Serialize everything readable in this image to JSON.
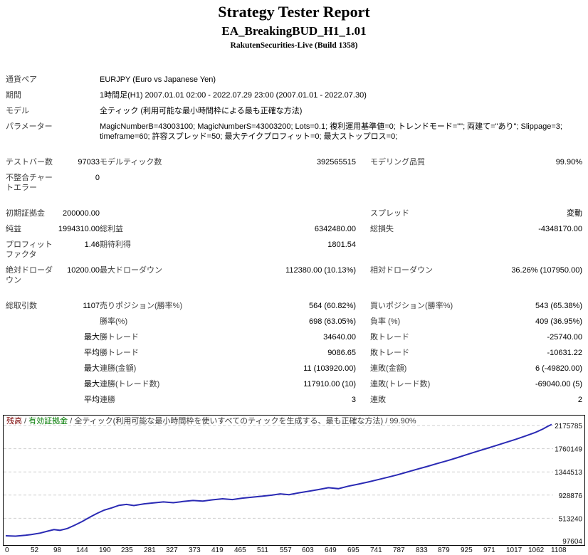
{
  "header": {
    "title": "Strategy Tester Report",
    "subtitle": "EA_BreakingBUD_H1_1.01",
    "build": "RakutenSecurities-Live (Build 1358)"
  },
  "table": {
    "rows": [
      {
        "type": "info",
        "label": "通貨ペア",
        "value": "EURJPY (Euro vs Japanese Yen)"
      },
      {
        "type": "info",
        "label": "期間",
        "value": "1時間足(H1) 2007.01.01 02:00 - 2022.07.29 23:00 (2007.01.01 - 2022.07.30)"
      },
      {
        "type": "info",
        "label": "モデル",
        "value": "全ティック (利用可能な最小時間枠による最も正確な方法)"
      },
      {
        "type": "info",
        "label": "パラメーター",
        "value": "MagicNumberB=43003100; MagicNumberS=43003200; Lots=0.1; 複利運用基準値=0; トレンドモード=\"\"; 両建て=\"あり\"; Slippage=3; timeframe=60; 許容スプレッド=50; 最大テイクプロフィット=0; 最大ストップロス=0;"
      },
      {
        "type": "spacer"
      },
      {
        "type": "stat",
        "c": [
          "テストバー数",
          "97033",
          "モデルティック数",
          "392565515",
          "モデリング品質",
          "99.90%"
        ]
      },
      {
        "type": "stat",
        "c": [
          "不整合チャートエラー",
          "0",
          "",
          "",
          "",
          ""
        ]
      },
      {
        "type": "spacer"
      },
      {
        "type": "stat",
        "c": [
          "初期証拠金",
          "200000.00",
          "",
          "",
          "スプレッド",
          "変動"
        ]
      },
      {
        "type": "stat",
        "c": [
          "純益",
          "1994310.00",
          "総利益",
          "6342480.00",
          "総損失",
          "-4348170.00"
        ]
      },
      {
        "type": "stat",
        "c": [
          "プロフィットファクタ",
          "1.46",
          "期待利得",
          "1801.54",
          "",
          ""
        ]
      },
      {
        "type": "stat",
        "c": [
          "絶対ドローダウン",
          "10200.00",
          "最大ドローダウン",
          "112380.00 (10.13%)",
          "相対ドローダウン",
          "36.26% (107950.00)"
        ]
      },
      {
        "type": "spacer"
      },
      {
        "type": "stat",
        "c": [
          "総取引数",
          "1107",
          "売りポジション(勝率%)",
          "564 (60.82%)",
          "買いポジション(勝率%)",
          "543 (65.38%)"
        ]
      },
      {
        "type": "stat",
        "c": [
          "",
          "",
          "勝率(%)",
          "698 (63.05%)",
          "負率 (%)",
          "409 (36.95%)"
        ]
      },
      {
        "type": "stat",
        "c": [
          "",
          "最大",
          "勝トレード",
          "34640.00",
          "敗トレード",
          "-25740.00"
        ]
      },
      {
        "type": "stat",
        "c": [
          "",
          "平均",
          "勝トレード",
          "9086.65",
          "敗トレード",
          "-10631.22"
        ]
      },
      {
        "type": "stat",
        "c": [
          "",
          "最大",
          "連勝(金額)",
          "11 (103920.00)",
          "連敗(金額)",
          "6 (-49820.00)"
        ]
      },
      {
        "type": "stat",
        "c": [
          "",
          "最大",
          "連勝(トレード数)",
          "117910.00 (10)",
          "連敗(トレード数)",
          "-69040.00 (5)"
        ]
      },
      {
        "type": "stat",
        "c": [
          "",
          "平均",
          "連勝",
          "3",
          "連敗",
          "2"
        ]
      }
    ]
  },
  "chart_data": {
    "type": "line",
    "title": "残高 / 有効証拠金 / 全ティック(利用可能な最小時間枠を使いすべてのティックを生成する、最も正確な方法) / 99.90%",
    "header_parts": [
      {
        "text": "残高",
        "color": "#7a0000"
      },
      {
        "text": " / ",
        "color": "#3a3a3a"
      },
      {
        "text": "有効証拠金",
        "color": "#007a00"
      },
      {
        "text": " / ",
        "color": "#3a3a3a"
      },
      {
        "text": "全ティック(利用可能な最小時間枠を使いすべてのティックを生成する、最も正確な方法)",
        "color": "#3a3a3a"
      },
      {
        "text": " / 99.90%",
        "color": "#3a3a3a"
      }
    ],
    "legend": [
      {
        "name": "残高",
        "color": "#2a2ab4"
      },
      {
        "name": "有効証拠金",
        "color": "#1f8f1f"
      }
    ],
    "legend_position": "top-left",
    "grid": "horizontal-dashed",
    "x_ticks": [
      0,
      52,
      98,
      144,
      190,
      235,
      281,
      327,
      373,
      419,
      465,
      511,
      557,
      603,
      649,
      695,
      741,
      787,
      833,
      879,
      925,
      971,
      1017,
      1062,
      1108
    ],
    "y_ticks": [
      97604,
      513240,
      928876,
      1344513,
      1760149,
      2175785
    ],
    "x_max": 1108,
    "xlim": [
      0,
      1115
    ],
    "ylim": [
      97604,
      2194310
    ],
    "series": [
      {
        "id": "balance-line",
        "name": "残高",
        "color": "#2a2ab4",
        "points": [
          [
            0,
            200000
          ],
          [
            20,
            193000
          ],
          [
            40,
            210000
          ],
          [
            52,
            222000
          ],
          [
            70,
            248000
          ],
          [
            85,
            282000
          ],
          [
            98,
            310000
          ],
          [
            110,
            298000
          ],
          [
            125,
            330000
          ],
          [
            140,
            390000
          ],
          [
            155,
            455000
          ],
          [
            170,
            530000
          ],
          [
            185,
            600000
          ],
          [
            200,
            660000
          ],
          [
            215,
            700000
          ],
          [
            230,
            745000
          ],
          [
            245,
            762000
          ],
          [
            260,
            742000
          ],
          [
            281,
            772000
          ],
          [
            300,
            790000
          ],
          [
            320,
            806000
          ],
          [
            340,
            792000
          ],
          [
            360,
            814000
          ],
          [
            380,
            832000
          ],
          [
            400,
            820000
          ],
          [
            419,
            844000
          ],
          [
            440,
            862000
          ],
          [
            460,
            848000
          ],
          [
            480,
            874000
          ],
          [
            500,
            892000
          ],
          [
            520,
            908000
          ],
          [
            540,
            928000
          ],
          [
            557,
            950000
          ],
          [
            575,
            936000
          ],
          [
            595,
            970000
          ],
          [
            615,
            998000
          ],
          [
            635,
            1028000
          ],
          [
            655,
            1062000
          ],
          [
            675,
            1044000
          ],
          [
            695,
            1088000
          ],
          [
            715,
            1124000
          ],
          [
            735,
            1162000
          ],
          [
            755,
            1204000
          ],
          [
            775,
            1248000
          ],
          [
            795,
            1292000
          ],
          [
            815,
            1342000
          ],
          [
            833,
            1388000
          ],
          [
            855,
            1442000
          ],
          [
            875,
            1492000
          ],
          [
            895,
            1542000
          ],
          [
            915,
            1596000
          ],
          [
            935,
            1652000
          ],
          [
            955,
            1708000
          ],
          [
            975,
            1762000
          ],
          [
            995,
            1816000
          ],
          [
            1015,
            1872000
          ],
          [
            1035,
            1928000
          ],
          [
            1055,
            1988000
          ],
          [
            1075,
            2052000
          ],
          [
            1090,
            2112000
          ],
          [
            1100,
            2162000
          ],
          [
            1108,
            2194310
          ]
        ]
      }
    ]
  }
}
